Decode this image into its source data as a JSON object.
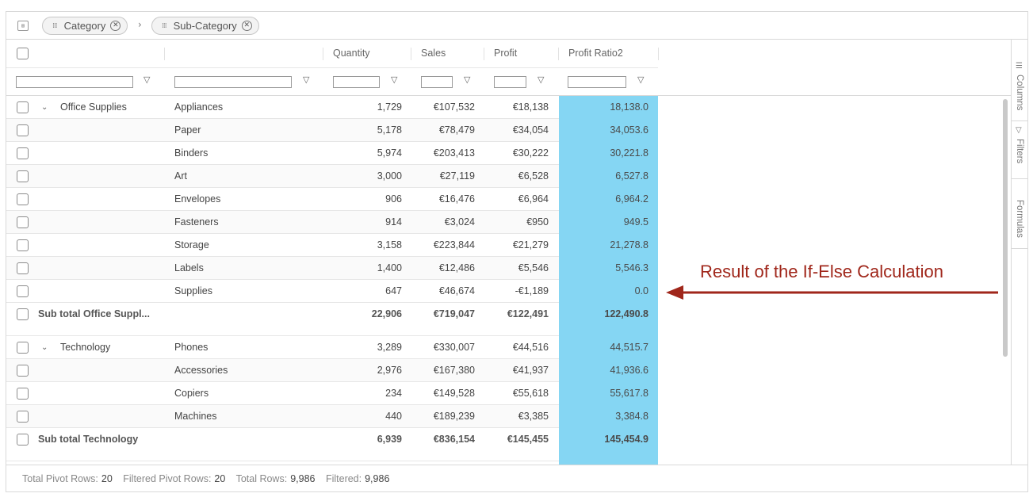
{
  "group_bar": {
    "chips": [
      {
        "label": "Category",
        "left": 45
      },
      {
        "label": "Sub-Category",
        "left": 183
      }
    ]
  },
  "columns": {
    "quantity": "Quantity",
    "sales": "Sales",
    "profit": "Profit",
    "profit_ratio": "Profit Ratio2"
  },
  "groups": [
    {
      "category": "Office Supplies",
      "rows": [
        {
          "sub": "Appliances",
          "quantity": "1,729",
          "sales": "€107,532",
          "profit": "€18,138",
          "ratio": "18,138.0"
        },
        {
          "sub": "Paper",
          "quantity": "5,178",
          "sales": "€78,479",
          "profit": "€34,054",
          "ratio": "34,053.6"
        },
        {
          "sub": "Binders",
          "quantity": "5,974",
          "sales": "€203,413",
          "profit": "€30,222",
          "ratio": "30,221.8"
        },
        {
          "sub": "Art",
          "quantity": "3,000",
          "sales": "€27,119",
          "profit": "€6,528",
          "ratio": "6,527.8"
        },
        {
          "sub": "Envelopes",
          "quantity": "906",
          "sales": "€16,476",
          "profit": "€6,964",
          "ratio": "6,964.2"
        },
        {
          "sub": "Fasteners",
          "quantity": "914",
          "sales": "€3,024",
          "profit": "€950",
          "ratio": "949.5"
        },
        {
          "sub": "Storage",
          "quantity": "3,158",
          "sales": "€223,844",
          "profit": "€21,279",
          "ratio": "21,278.8"
        },
        {
          "sub": "Labels",
          "quantity": "1,400",
          "sales": "€12,486",
          "profit": "€5,546",
          "ratio": "5,546.3"
        },
        {
          "sub": "Supplies",
          "quantity": "647",
          "sales": "€46,674",
          "profit": "-€1,189",
          "ratio": "0.0"
        }
      ],
      "subtotal": {
        "label": "Sub total Office Suppl...",
        "quantity": "22,906",
        "sales": "€719,047",
        "profit": "€122,491",
        "ratio": "122,490.8"
      }
    },
    {
      "category": "Technology",
      "rows": [
        {
          "sub": "Phones",
          "quantity": "3,289",
          "sales": "€330,007",
          "profit": "€44,516",
          "ratio": "44,515.7"
        },
        {
          "sub": "Accessories",
          "quantity": "2,976",
          "sales": "€167,380",
          "profit": "€41,937",
          "ratio": "41,936.6"
        },
        {
          "sub": "Copiers",
          "quantity": "234",
          "sales": "€149,528",
          "profit": "€55,618",
          "ratio": "55,617.8"
        },
        {
          "sub": "Machines",
          "quantity": "440",
          "sales": "€189,239",
          "profit": "€3,385",
          "ratio": "3,384.8"
        }
      ],
      "subtotal": {
        "label": "Sub total Technology",
        "quantity": "6,939",
        "sales": "€836,154",
        "profit": "€145,455",
        "ratio": "145,454.9"
      }
    }
  ],
  "side_panel": {
    "columns": "Columns",
    "filters": "Filters",
    "formulas": "Formulas"
  },
  "status": {
    "total_pivot_rows_label": "Total Pivot Rows:",
    "total_pivot_rows": "20",
    "filtered_pivot_rows_label": "Filtered Pivot Rows:",
    "filtered_pivot_rows": "20",
    "total_rows_label": "Total Rows:",
    "total_rows": "9,986",
    "filtered_label": "Filtered:",
    "filtered": "9,986"
  },
  "annotation": {
    "text": "Result of the If-Else Calculation",
    "color": "#a0271b"
  },
  "colors": {
    "highlight_column": "#85d6f3"
  }
}
